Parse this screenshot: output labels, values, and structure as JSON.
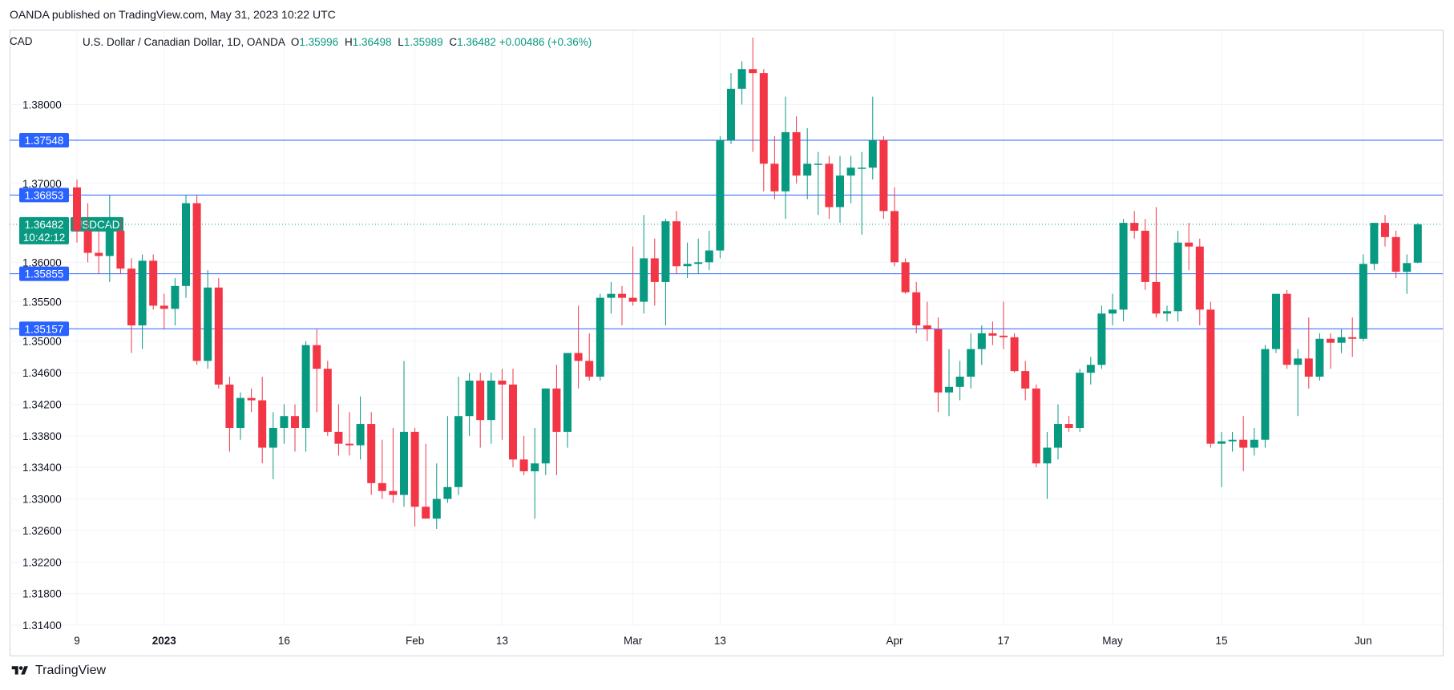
{
  "header": {
    "published": "OANDA published on TradingView.com, May 31, 2023 10:22 UTC"
  },
  "legend": {
    "symbol_name": "U.S. Dollar / Canadian Dollar, 1D, OANDA",
    "o_label": "O",
    "o_value": "1.35996",
    "h_label": "H",
    "h_value": "1.36498",
    "l_label": "L",
    "l_value": "1.35989",
    "c_label": "C",
    "c_value": "1.36482",
    "change": "+0.00486 (+0.36%)"
  },
  "axis_currency": "CAD",
  "footer": {
    "brand": "TradingView"
  },
  "colors": {
    "up": "#089981",
    "down": "#f23645",
    "hline": "#2962ff",
    "grid": "#f0f3fa",
    "axis_text": "#131722",
    "price_badge": "#089981"
  },
  "chart_data": {
    "type": "candlestick",
    "symbol": "USDCAD",
    "ylim": [
      1.314,
      1.3895
    ],
    "y_ticks": [
      "1.38000",
      "1.37000",
      "1.36000",
      "1.35500",
      "1.35000",
      "1.34600",
      "1.34200",
      "1.33800",
      "1.33400",
      "1.33000",
      "1.32600",
      "1.32200",
      "1.31800",
      "1.31400"
    ],
    "x_ticks": [
      {
        "label": "9",
        "index": 0
      },
      {
        "label": "2023",
        "index": 8,
        "bold": true
      },
      {
        "label": "16",
        "index": 19
      },
      {
        "label": "Feb",
        "index": 31
      },
      {
        "label": "13",
        "index": 39
      },
      {
        "label": "Mar",
        "index": 51
      },
      {
        "label": "13",
        "index": 59
      },
      {
        "label": "Apr",
        "index": 75
      },
      {
        "label": "17",
        "index": 85
      },
      {
        "label": "May",
        "index": 95
      },
      {
        "label": "15",
        "index": 105
      },
      {
        "label": "Jun",
        "index": 118
      }
    ],
    "horizontal_levels": [
      "1.37548",
      "1.36853",
      "1.35855",
      "1.35157"
    ],
    "current_price": {
      "value": "1.36482",
      "symbol": "USDCAD",
      "countdown": "10:42:12"
    },
    "candles": [
      [
        1.3695,
        1.3705,
        1.3625,
        1.364
      ],
      [
        1.364,
        1.3675,
        1.36,
        1.3612
      ],
      [
        1.3612,
        1.364,
        1.3585,
        1.3608
      ],
      [
        1.3608,
        1.3685,
        1.3575,
        1.364
      ],
      [
        1.364,
        1.3655,
        1.3585,
        1.3592
      ],
      [
        1.3592,
        1.3605,
        1.3485,
        1.352
      ],
      [
        1.352,
        1.361,
        1.349,
        1.3602
      ],
      [
        1.3602,
        1.361,
        1.354,
        1.3545
      ],
      [
        1.3545,
        1.356,
        1.3515,
        1.3541
      ],
      [
        1.3541,
        1.358,
        1.352,
        1.357
      ],
      [
        1.357,
        1.3685,
        1.3555,
        1.3675
      ],
      [
        1.3675,
        1.3685,
        1.347,
        1.3475
      ],
      [
        1.3475,
        1.359,
        1.3465,
        1.3568
      ],
      [
        1.3568,
        1.358,
        1.344,
        1.3445
      ],
      [
        1.3445,
        1.3455,
        1.336,
        1.339
      ],
      [
        1.339,
        1.3435,
        1.3375,
        1.3428
      ],
      [
        1.3428,
        1.344,
        1.341,
        1.3425
      ],
      [
        1.3425,
        1.3455,
        1.3345,
        1.3365
      ],
      [
        1.3365,
        1.341,
        1.3325,
        1.339
      ],
      [
        1.339,
        1.342,
        1.337,
        1.3405
      ],
      [
        1.3405,
        1.342,
        1.336,
        1.339
      ],
      [
        1.339,
        1.35,
        1.336,
        1.3495
      ],
      [
        1.3495,
        1.3515,
        1.341,
        1.3465
      ],
      [
        1.3465,
        1.3475,
        1.338,
        1.3385
      ],
      [
        1.3385,
        1.342,
        1.3355,
        1.337
      ],
      [
        1.337,
        1.341,
        1.3355,
        1.3368
      ],
      [
        1.3368,
        1.343,
        1.335,
        1.3395
      ],
      [
        1.3395,
        1.341,
        1.3305,
        1.332
      ],
      [
        1.332,
        1.3375,
        1.33,
        1.331
      ],
      [
        1.331,
        1.339,
        1.3295,
        1.3305
      ],
      [
        1.3305,
        1.3475,
        1.329,
        1.3385
      ],
      [
        1.3385,
        1.339,
        1.3265,
        1.329
      ],
      [
        1.329,
        1.337,
        1.3275,
        1.3275
      ],
      [
        1.3275,
        1.3345,
        1.3262,
        1.33
      ],
      [
        1.33,
        1.3405,
        1.3295,
        1.3315
      ],
      [
        1.3315,
        1.3455,
        1.3305,
        1.3405
      ],
      [
        1.3405,
        1.346,
        1.338,
        1.345
      ],
      [
        1.345,
        1.346,
        1.3365,
        1.34
      ],
      [
        1.34,
        1.346,
        1.337,
        1.345
      ],
      [
        1.345,
        1.3465,
        1.3375,
        1.3445
      ],
      [
        1.3445,
        1.3465,
        1.334,
        1.335
      ],
      [
        1.335,
        1.338,
        1.333,
        1.3335
      ],
      [
        1.3335,
        1.339,
        1.3275,
        1.3345
      ],
      [
        1.3345,
        1.344,
        1.333,
        1.344
      ],
      [
        1.344,
        1.347,
        1.333,
        1.3385
      ],
      [
        1.3385,
        1.348,
        1.3365,
        1.3485
      ],
      [
        1.3485,
        1.3545,
        1.344,
        1.3475
      ],
      [
        1.3475,
        1.351,
        1.345,
        1.3455
      ],
      [
        1.3455,
        1.356,
        1.345,
        1.3555
      ],
      [
        1.3555,
        1.3575,
        1.3535,
        1.356
      ],
      [
        1.356,
        1.357,
        1.352,
        1.3555
      ],
      [
        1.3555,
        1.362,
        1.3545,
        1.355
      ],
      [
        1.355,
        1.366,
        1.3535,
        1.3605
      ],
      [
        1.3605,
        1.363,
        1.3545,
        1.3575
      ],
      [
        1.3575,
        1.3655,
        1.352,
        1.3652
      ],
      [
        1.3652,
        1.3665,
        1.3585,
        1.3595
      ],
      [
        1.3595,
        1.3625,
        1.358,
        1.3598
      ],
      [
        1.3598,
        1.363,
        1.3585,
        1.36
      ],
      [
        1.36,
        1.364,
        1.359,
        1.3615
      ],
      [
        1.3615,
        1.376,
        1.3605,
        1.3755
      ],
      [
        1.3755,
        1.384,
        1.375,
        1.382
      ],
      [
        1.382,
        1.3855,
        1.38,
        1.3845
      ],
      [
        1.3845,
        1.3885,
        1.374,
        1.384
      ],
      [
        1.384,
        1.3845,
        1.369,
        1.3725
      ],
      [
        1.3725,
        1.376,
        1.368,
        1.369
      ],
      [
        1.369,
        1.381,
        1.3655,
        1.3765
      ],
      [
        1.3765,
        1.3785,
        1.37,
        1.371
      ],
      [
        1.371,
        1.377,
        1.368,
        1.3725
      ],
      [
        1.3725,
        1.374,
        1.366,
        1.3725
      ],
      [
        1.3725,
        1.3735,
        1.3655,
        1.367
      ],
      [
        1.367,
        1.3735,
        1.365,
        1.371
      ],
      [
        1.371,
        1.3735,
        1.3675,
        1.372
      ],
      [
        1.372,
        1.374,
        1.3635,
        1.372
      ],
      [
        1.372,
        1.381,
        1.3705,
        1.3755
      ],
      [
        1.3755,
        1.376,
        1.3655,
        1.3665
      ],
      [
        1.3665,
        1.3695,
        1.3595,
        1.36
      ],
      [
        1.36,
        1.3605,
        1.356,
        1.3562
      ],
      [
        1.3562,
        1.3575,
        1.351,
        1.352
      ],
      [
        1.352,
        1.355,
        1.35,
        1.3515
      ],
      [
        1.3515,
        1.353,
        1.341,
        1.3435
      ],
      [
        1.3435,
        1.349,
        1.3405,
        1.3442
      ],
      [
        1.3442,
        1.3475,
        1.3425,
        1.3455
      ],
      [
        1.3455,
        1.351,
        1.344,
        1.349
      ],
      [
        1.349,
        1.352,
        1.347,
        1.351
      ],
      [
        1.351,
        1.3525,
        1.3495,
        1.3507
      ],
      [
        1.3507,
        1.355,
        1.349,
        1.3505
      ],
      [
        1.3505,
        1.351,
        1.346,
        1.3462
      ],
      [
        1.3462,
        1.3475,
        1.3425,
        1.344
      ],
      [
        1.344,
        1.3445,
        1.334,
        1.3345
      ],
      [
        1.3345,
        1.3385,
        1.33,
        1.3365
      ],
      [
        1.3365,
        1.342,
        1.335,
        1.3395
      ],
      [
        1.3395,
        1.3405,
        1.3385,
        1.339
      ],
      [
        1.339,
        1.3465,
        1.3385,
        1.346
      ],
      [
        1.346,
        1.348,
        1.3445,
        1.347
      ],
      [
        1.347,
        1.3545,
        1.3465,
        1.3535
      ],
      [
        1.3535,
        1.356,
        1.352,
        1.354
      ],
      [
        1.354,
        1.3655,
        1.3525,
        1.365
      ],
      [
        1.365,
        1.3665,
        1.363,
        1.364
      ],
      [
        1.364,
        1.3655,
        1.3565,
        1.3575
      ],
      [
        1.3575,
        1.367,
        1.353,
        1.3535
      ],
      [
        1.3535,
        1.3545,
        1.3525,
        1.3538
      ],
      [
        1.3538,
        1.364,
        1.3525,
        1.3625
      ],
      [
        1.3625,
        1.365,
        1.359,
        1.362
      ],
      [
        1.362,
        1.363,
        1.352,
        1.354
      ],
      [
        1.354,
        1.355,
        1.3365,
        1.337
      ],
      [
        1.337,
        1.3385,
        1.3315,
        1.3373
      ],
      [
        1.3373,
        1.3385,
        1.336,
        1.3375
      ],
      [
        1.3375,
        1.3405,
        1.3335,
        1.3365
      ],
      [
        1.3365,
        1.339,
        1.3355,
        1.3375
      ],
      [
        1.3375,
        1.3495,
        1.3365,
        1.349
      ],
      [
        1.349,
        1.356,
        1.3485,
        1.356
      ],
      [
        1.356,
        1.3565,
        1.3465,
        1.347
      ],
      [
        1.347,
        1.349,
        1.3405,
        1.3478
      ],
      [
        1.3478,
        1.353,
        1.344,
        1.3455
      ],
      [
        1.3455,
        1.351,
        1.345,
        1.3503
      ],
      [
        1.3503,
        1.351,
        1.3465,
        1.3498
      ],
      [
        1.3498,
        1.3515,
        1.3485,
        1.3505
      ],
      [
        1.3505,
        1.353,
        1.348,
        1.3503
      ],
      [
        1.3503,
        1.361,
        1.35,
        1.3598
      ],
      [
        1.3598,
        1.365,
        1.359,
        1.365
      ],
      [
        1.365,
        1.366,
        1.362,
        1.3632
      ],
      [
        1.3632,
        1.364,
        1.358,
        1.3588
      ],
      [
        1.3588,
        1.361,
        1.356,
        1.3599
      ],
      [
        1.35996,
        1.36498,
        1.35989,
        1.36482
      ]
    ]
  }
}
